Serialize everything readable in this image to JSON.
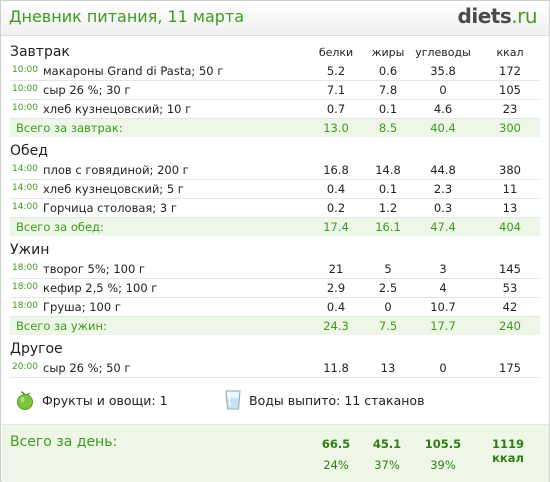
{
  "header": {
    "title": "Дневник питания, 11 марта",
    "brand_main": "diets",
    "brand_tld": ".ru"
  },
  "columns": {
    "protein": "белки",
    "fat": "жиры",
    "carbs": "углеводы",
    "kcal": "ккал"
  },
  "meals": [
    {
      "title": "Завтрак",
      "items": [
        {
          "time": "10:00",
          "name": "макароны Grand di Pasta; 50 г",
          "protein": "5.2",
          "fat": "0.6",
          "carbs": "35.8",
          "kcal": "172"
        },
        {
          "time": "10:00",
          "name": "сыр 26 %; 30 г",
          "protein": "7.1",
          "fat": "7.8",
          "carbs": "0",
          "kcal": "105"
        },
        {
          "time": "10:00",
          "name": "хлеб кузнецовский; 10 г",
          "protein": "0.7",
          "fat": "0.1",
          "carbs": "4.6",
          "kcal": "23"
        }
      ],
      "total": {
        "label": "Всего за завтрак:",
        "protein": "13.0",
        "fat": "8.5",
        "carbs": "40.4",
        "kcal": "300"
      }
    },
    {
      "title": "Обед",
      "items": [
        {
          "time": "14:00",
          "name": "плов с говядиной; 200 г",
          "protein": "16.8",
          "fat": "14.8",
          "carbs": "44.8",
          "kcal": "380"
        },
        {
          "time": "14:00",
          "name": "хлеб кузнецовский; 5 г",
          "protein": "0.4",
          "fat": "0.1",
          "carbs": "2.3",
          "kcal": "11"
        },
        {
          "time": "14:00",
          "name": "Горчица столовая; 3 г",
          "protein": "0.2",
          "fat": "1.2",
          "carbs": "0.3",
          "kcal": "13"
        }
      ],
      "total": {
        "label": "Всего за обед:",
        "protein": "17.4",
        "fat": "16.1",
        "carbs": "47.4",
        "kcal": "404"
      }
    },
    {
      "title": "Ужин",
      "items": [
        {
          "time": "18:00",
          "name": "творог 5%; 100 г",
          "protein": "21",
          "fat": "5",
          "carbs": "3",
          "kcal": "145"
        },
        {
          "time": "18:00",
          "name": "кефир 2,5 %; 100 г",
          "protein": "2.9",
          "fat": "2.5",
          "carbs": "4",
          "kcal": "53"
        },
        {
          "time": "18:00",
          "name": "Груша; 100 г",
          "protein": "0.4",
          "fat": "0",
          "carbs": "10.7",
          "kcal": "42"
        }
      ],
      "total": {
        "label": "Всего за ужин:",
        "protein": "24.3",
        "fat": "7.5",
        "carbs": "17.7",
        "kcal": "240"
      }
    },
    {
      "title": "Другое",
      "items": [
        {
          "time": "20:00",
          "name": "сыр 26 %; 50 г",
          "protein": "11.8",
          "fat": "13",
          "carbs": "0",
          "kcal": "175"
        }
      ]
    }
  ],
  "extras": {
    "fruits": "Фрукты и овощи: 1",
    "water": "Воды выпито: 11 стаканов"
  },
  "day": {
    "label": "Всего за день:",
    "protein": "66.5",
    "fat": "45.1",
    "carbs": "105.5",
    "kcal": "1119 ккал",
    "protein_pct": "24%",
    "fat_pct": "37%",
    "carbs_pct": "39%"
  },
  "icons": {
    "fruit": "apple-icon",
    "water": "glass-icon"
  },
  "colors": {
    "accent": "#3d9a1e",
    "total_bg": "#eef7e7"
  }
}
